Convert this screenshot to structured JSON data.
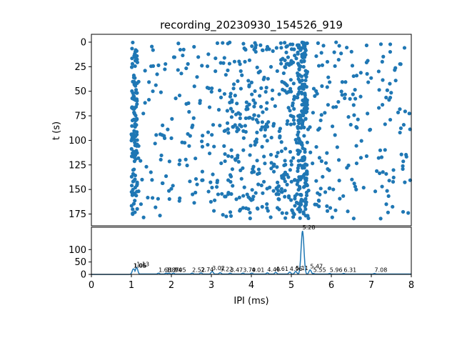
{
  "chart_data": [
    {
      "type": "scatter",
      "title": "recording_20230930_154526_919",
      "xlabel": "",
      "ylabel": "t (s)",
      "xlim": [
        0,
        8
      ],
      "ylim": [
        187,
        -8
      ],
      "y_inverted": true,
      "yticks": [
        0,
        25,
        50,
        75,
        100,
        125,
        150,
        175
      ],
      "grid": false,
      "color": "#1f77b4",
      "points": []
    },
    {
      "type": "line",
      "title": "",
      "xlabel": "IPI (ms)",
      "ylabel": "",
      "xlim": [
        0,
        8
      ],
      "ylim": [
        0,
        190
      ],
      "xticks": [
        0,
        1,
        2,
        3,
        4,
        5,
        6,
        7,
        8
      ],
      "yticks": [
        0,
        50,
        100
      ],
      "grid": false,
      "color": "#1f77b4",
      "peaks": [
        {
          "x": 1.05,
          "y": 22,
          "label": "1.05"
        },
        {
          "x": 1.06,
          "y": 22,
          "label": "1.06"
        },
        {
          "x": 1.13,
          "y": 28,
          "label": "1.13"
        },
        {
          "x": 1.68,
          "y": 5,
          "label": "1.68"
        },
        {
          "x": 1.87,
          "y": 5,
          "label": "1.87"
        },
        {
          "x": 1.94,
          "y": 5,
          "label": "1.94"
        },
        {
          "x": 2.05,
          "y": 5,
          "label": "2.05"
        },
        {
          "x": 2.52,
          "y": 5,
          "label": "2.52"
        },
        {
          "x": 2.74,
          "y": 6,
          "label": "2.74"
        },
        {
          "x": 3.02,
          "y": 12,
          "label": "3.02"
        },
        {
          "x": 3.22,
          "y": 7,
          "label": "3.22"
        },
        {
          "x": 3.47,
          "y": 5,
          "label": "3.47"
        },
        {
          "x": 3.79,
          "y": 5,
          "label": "3.79"
        },
        {
          "x": 4.01,
          "y": 5,
          "label": "4.01"
        },
        {
          "x": 4.4,
          "y": 6,
          "label": "4.40"
        },
        {
          "x": 4.61,
          "y": 8,
          "label": "4.61"
        },
        {
          "x": 4.96,
          "y": 9,
          "label": "4.96"
        },
        {
          "x": 5.11,
          "y": 12,
          "label": "5.11"
        },
        {
          "x": 5.28,
          "y": 175,
          "label": "5.28"
        },
        {
          "x": 5.47,
          "y": 18,
          "label": "5.47"
        },
        {
          "x": 5.55,
          "y": 4,
          "label": "5.55"
        },
        {
          "x": 5.96,
          "y": 4,
          "label": "5.96"
        },
        {
          "x": 6.31,
          "y": 4,
          "label": "6.31"
        },
        {
          "x": 7.08,
          "y": 4,
          "label": "7.08"
        }
      ]
    }
  ]
}
